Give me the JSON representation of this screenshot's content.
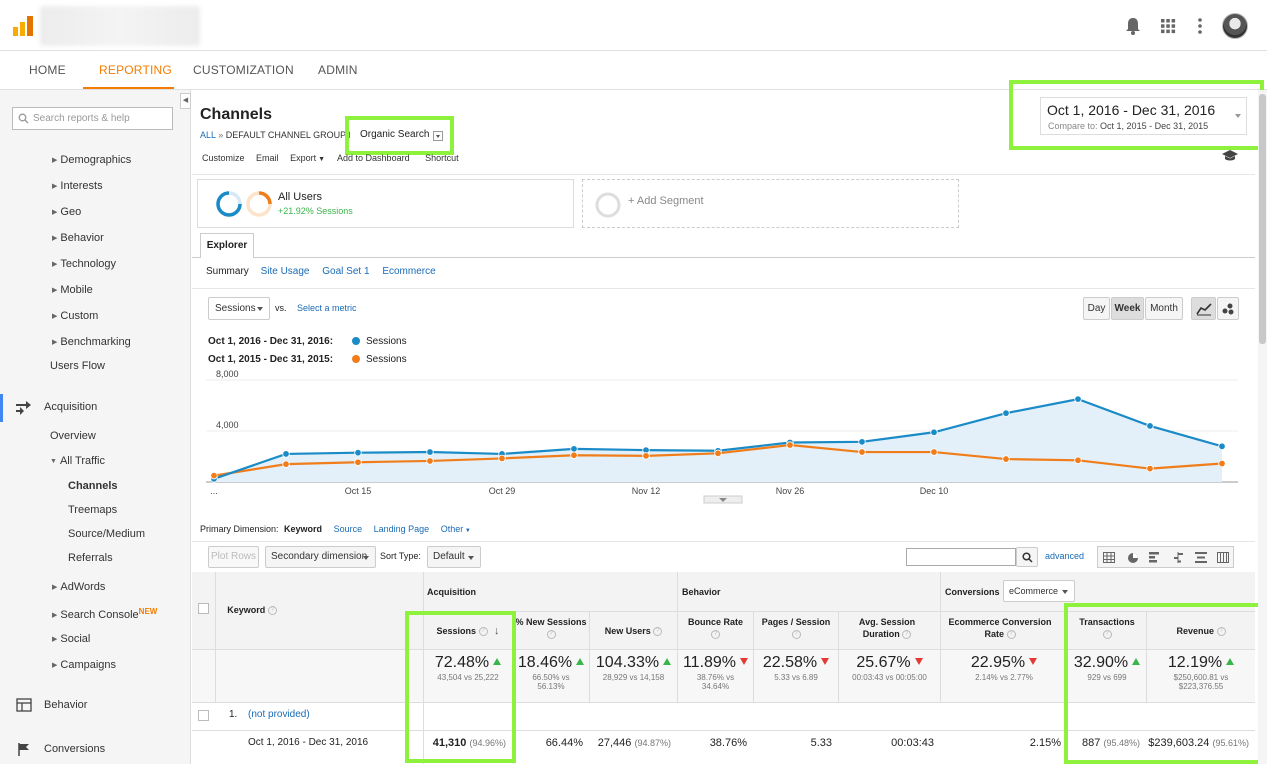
{
  "nav": {
    "tabs": [
      "HOME",
      "REPORTING",
      "CUSTOMIZATION",
      "ADMIN"
    ]
  },
  "sidebar": {
    "search_placeholder": "Search reports & help",
    "audience_items": [
      "Demographics",
      "Interests",
      "Geo",
      "Behavior",
      "Technology",
      "Mobile",
      "Custom",
      "Benchmarking"
    ],
    "users_flow": "Users Flow",
    "acquisition": "Acquisition",
    "overview": "Overview",
    "all_traffic": "All Traffic",
    "all_traffic_items": [
      "Channels",
      "Treemaps",
      "Source/Medium",
      "Referrals"
    ],
    "acq_items": [
      "AdWords",
      "Search Console",
      "Social",
      "Campaigns"
    ],
    "new_badge": "NEW",
    "behavior": "Behavior",
    "conversions": "Conversions"
  },
  "report": {
    "title": "Channels",
    "breadcrumb_all": "ALL",
    "breadcrumb_sep": "»",
    "breadcrumb_grouping": "DEFAULT CHANNEL GROUPING:",
    "breadcrumb_value": "Organic Search",
    "toolbar": [
      "Customize",
      "Email",
      "Export",
      "Add to Dashboard",
      "Shortcut"
    ],
    "date_range": "Oct 1, 2016 - Dec 31, 2016",
    "compare_label": "Compare to:",
    "compare_range": "Oct 1, 2015 - Dec 31, 2015"
  },
  "segments": {
    "segment_name": "All Users",
    "segment_delta": "+21.92% Sessions",
    "add_segment": "+ Add Segment"
  },
  "explorer": {
    "tab": "Explorer",
    "subtabs": [
      "Summary",
      "Site Usage",
      "Goal Set 1",
      "Ecommerce"
    ],
    "metric": "Sessions",
    "vs": "vs.",
    "select_metric": "Select a metric",
    "granularity": [
      "Day",
      "Week",
      "Month"
    ]
  },
  "chart_data": {
    "type": "line",
    "legend": [
      {
        "period": "Oct 1, 2016 - Dec 31, 2016:",
        "name": "Sessions",
        "color": "#1a8bc7"
      },
      {
        "period": "Oct 1, 2015 - Dec 31, 2015:",
        "name": "Sessions",
        "color": "#f07d1a"
      }
    ],
    "y_ticks": [
      "8,000",
      "4,000"
    ],
    "ylim": [
      0,
      8000
    ],
    "x_tick_labels": [
      "...",
      "Oct 15",
      "Oct 29",
      "Nov 12",
      "Nov 26",
      "Dec 10"
    ],
    "series": [
      {
        "name": "Sessions",
        "period": "Oct 1, 2016 - Dec 31, 2016",
        "color": "#1a8bc7",
        "values": [
          250,
          2200,
          2300,
          2350,
          2200,
          2600,
          2500,
          2450,
          3100,
          3150,
          3900,
          5400,
          6500,
          4400,
          2800
        ]
      },
      {
        "name": "Sessions",
        "period": "Oct 1, 2015 - Dec 31, 2015",
        "color": "#f07d1a",
        "values": [
          500,
          1400,
          1550,
          1650,
          1850,
          2100,
          2050,
          2250,
          2900,
          2350,
          2350,
          1800,
          1700,
          1050,
          1450
        ]
      }
    ]
  },
  "table": {
    "primary_dimension_label": "Primary Dimension:",
    "dimensions": [
      "Keyword",
      "Source",
      "Landing Page",
      "Other"
    ],
    "plot_rows": "Plot Rows",
    "secondary_dimension": "Secondary dimension",
    "sort_type_label": "Sort Type:",
    "sort_type": "Default",
    "advanced": "advanced",
    "group_headers": [
      "Acquisition",
      "Behavior",
      "Conversions"
    ],
    "conversions_select": "eCommerce",
    "keyword_header": "Keyword",
    "columns": [
      "Sessions",
      "% New Sessions",
      "New Users",
      "Bounce Rate",
      "Pages / Session",
      "Avg. Session Duration",
      "Ecommerce Conversion Rate",
      "Transactions",
      "Revenue"
    ],
    "totals": [
      {
        "value": "72.48%",
        "dir": "up",
        "sub": "43,504 vs 25,222"
      },
      {
        "value": "18.46%",
        "dir": "up",
        "sub": "66.50% vs 56.13%"
      },
      {
        "value": "104.33%",
        "dir": "up",
        "sub": "28,929 vs 14,158"
      },
      {
        "value": "11.89%",
        "dir": "down",
        "sub": "38.76% vs 34.64%"
      },
      {
        "value": "22.58%",
        "dir": "down",
        "sub": "5.33 vs 6.89"
      },
      {
        "value": "25.67%",
        "dir": "down",
        "sub": "00:03:43 vs 00:05:00"
      },
      {
        "value": "22.95%",
        "dir": "down",
        "sub": "2.14% vs 2.77%"
      },
      {
        "value": "32.90%",
        "dir": "up",
        "sub": "929 vs 699"
      },
      {
        "value": "12.19%",
        "dir": "up",
        "sub": "$250,600.81 vs $223,376.55"
      }
    ],
    "row1_index": "1.",
    "row1_keyword": "(not provided)",
    "row1_period": "Oct 1, 2016 - Dec 31, 2016",
    "row1_values": [
      {
        "v": "41,310",
        "p": "(94.96%)"
      },
      {
        "v": "66.44%",
        "p": ""
      },
      {
        "v": "27,446",
        "p": "(94.87%)"
      },
      {
        "v": "38.76%",
        "p": ""
      },
      {
        "v": "5.33",
        "p": ""
      },
      {
        "v": "00:03:43",
        "p": ""
      },
      {
        "v": "2.15%",
        "p": ""
      },
      {
        "v": "887",
        "p": "(95.48%)"
      },
      {
        "v": "$239,603.24",
        "p": "(95.61%)"
      }
    ]
  }
}
